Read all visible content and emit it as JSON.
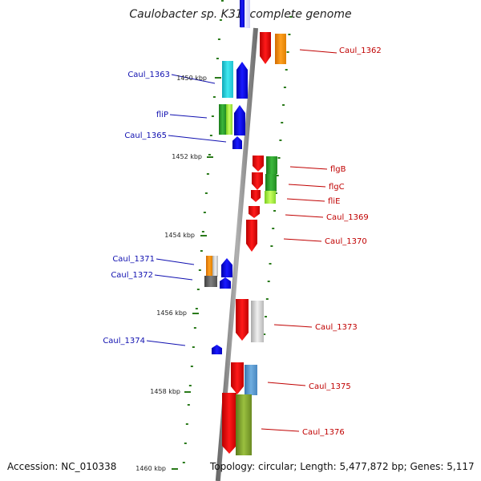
{
  "title": "Caulobacter sp. K31, complete genome",
  "footer": {
    "accession": "Accession: NC_010338",
    "topology": "Topology: circular; Length: 5,477,872 bp; Genes: 5,117"
  },
  "colors": {
    "forward_label": "#1010b0",
    "reverse_label": "#c00000",
    "backbone": "#8a8a8a",
    "scale_tick": "#2a7a1a"
  },
  "scale_ticks": [
    {
      "label": "1450 kbp"
    },
    {
      "label": "1452 kbp"
    },
    {
      "label": "1454 kbp"
    },
    {
      "label": "1456 kbp"
    },
    {
      "label": "1458 kbp"
    },
    {
      "label": "1460 kbp"
    }
  ],
  "genes": [
    {
      "name": "Caul_1362",
      "strand": "reverse"
    },
    {
      "name": "Caul_1363",
      "strand": "forward"
    },
    {
      "name": "fliP",
      "strand": "forward"
    },
    {
      "name": "Caul_1365",
      "strand": "forward"
    },
    {
      "name": "flgB",
      "strand": "reverse"
    },
    {
      "name": "flgC",
      "strand": "reverse"
    },
    {
      "name": "fliE",
      "strand": "reverse"
    },
    {
      "name": "Caul_1369",
      "strand": "reverse"
    },
    {
      "name": "Caul_1370",
      "strand": "reverse"
    },
    {
      "name": "Caul_1371",
      "strand": "forward"
    },
    {
      "name": "Caul_1372",
      "strand": "forward"
    },
    {
      "name": "Caul_1373",
      "strand": "reverse"
    },
    {
      "name": "Caul_1374",
      "strand": "forward"
    },
    {
      "name": "Caul_1375",
      "strand": "reverse"
    },
    {
      "name": "Caul_1376",
      "strand": "reverse"
    }
  ]
}
